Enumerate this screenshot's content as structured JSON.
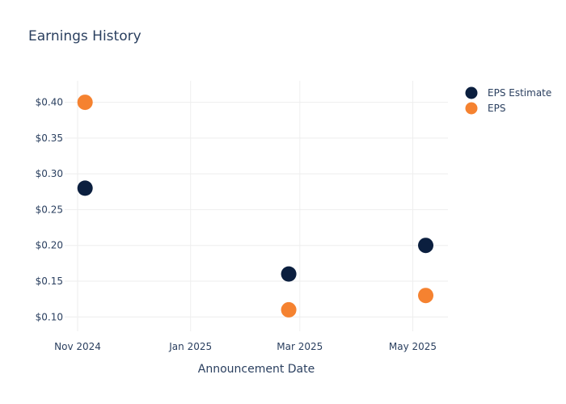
{
  "chart_data": {
    "type": "scatter",
    "title": "Earnings History",
    "xlabel": "Announcement Date",
    "ylabel": "",
    "x_ticks": [
      "Nov 2024",
      "Jan 2025",
      "Mar 2025",
      "May 2025"
    ],
    "y_ticks": [
      "$0.10",
      "$0.15",
      "$0.20",
      "$0.25",
      "$0.30",
      "$0.35",
      "$0.40"
    ],
    "ylim": [
      0.08,
      0.43
    ],
    "xlim": [
      "2024-10-25",
      "2025-05-20"
    ],
    "legend_position": "top-right",
    "series": [
      {
        "name": "EPS Estimate",
        "color": "#0b1f3f",
        "x": [
          "2024-11-05",
          "2025-02-23",
          "2025-05-08"
        ],
        "y": [
          0.28,
          0.16,
          0.2
        ]
      },
      {
        "name": "EPS",
        "color": "#f58230",
        "x": [
          "2024-11-05",
          "2025-02-23",
          "2025-05-08"
        ],
        "y": [
          0.4,
          0.11,
          0.13
        ]
      }
    ]
  }
}
